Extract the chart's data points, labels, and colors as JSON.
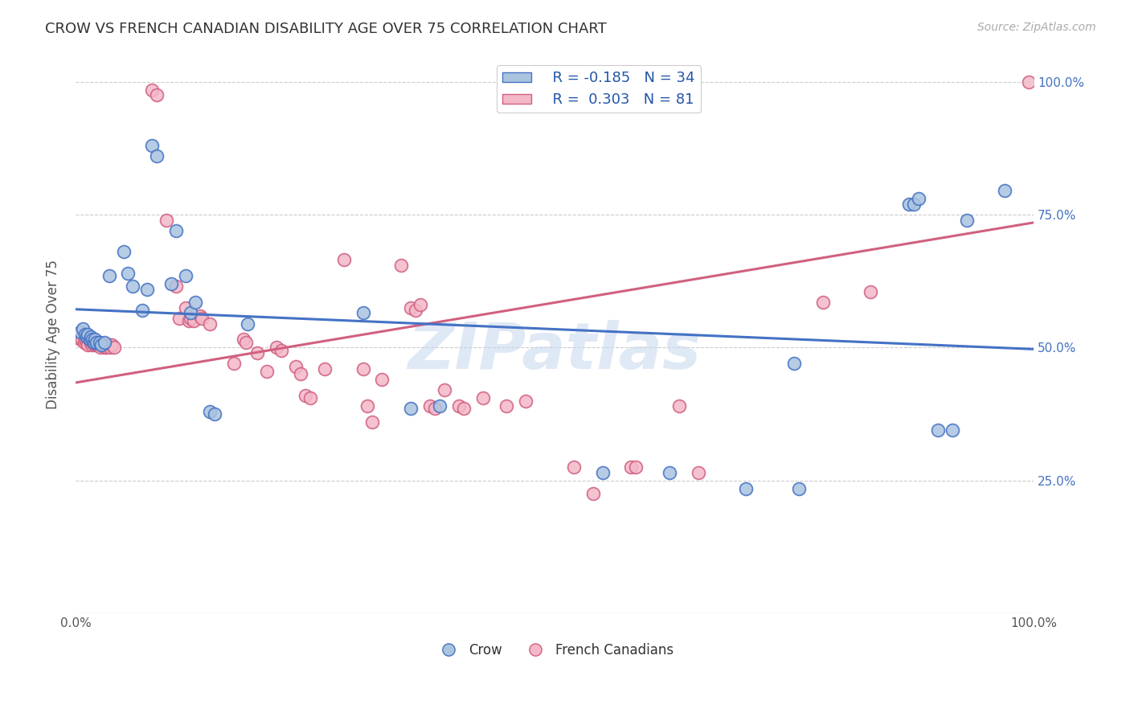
{
  "title": "CROW VS FRENCH CANADIAN DISABILITY AGE OVER 75 CORRELATION CHART",
  "source": "Source: ZipAtlas.com",
  "ylabel": "Disability Age Over 75",
  "xlim": [
    0,
    1
  ],
  "ylim": [
    0,
    1.05
  ],
  "watermark": "ZIPatlas",
  "crow_color": "#aac4e0",
  "crow_edge_color": "#4472c4",
  "fc_color": "#f4b8c8",
  "fc_edge_color": "#d06080",
  "crow_line_color": "#4472c4",
  "fc_line_color": "#d06080",
  "background_color": "#ffffff",
  "grid_color": "#cccccc",
  "crow_scatter": [
    [
      0.005,
      0.53
    ],
    [
      0.008,
      0.535
    ],
    [
      0.01,
      0.525
    ],
    [
      0.012,
      0.52
    ],
    [
      0.013,
      0.525
    ],
    [
      0.015,
      0.515
    ],
    [
      0.016,
      0.52
    ],
    [
      0.018,
      0.515
    ],
    [
      0.019,
      0.51
    ],
    [
      0.02,
      0.515
    ],
    [
      0.022,
      0.51
    ],
    [
      0.025,
      0.51
    ],
    [
      0.027,
      0.505
    ],
    [
      0.03,
      0.51
    ],
    [
      0.035,
      0.635
    ],
    [
      0.05,
      0.68
    ],
    [
      0.055,
      0.64
    ],
    [
      0.06,
      0.615
    ],
    [
      0.07,
      0.57
    ],
    [
      0.075,
      0.61
    ],
    [
      0.08,
      0.88
    ],
    [
      0.085,
      0.86
    ],
    [
      0.1,
      0.62
    ],
    [
      0.105,
      0.72
    ],
    [
      0.115,
      0.635
    ],
    [
      0.12,
      0.565
    ],
    [
      0.125,
      0.585
    ],
    [
      0.14,
      0.38
    ],
    [
      0.145,
      0.375
    ],
    [
      0.18,
      0.545
    ],
    [
      0.3,
      0.565
    ],
    [
      0.35,
      0.385
    ],
    [
      0.38,
      0.39
    ],
    [
      0.55,
      0.265
    ],
    [
      0.62,
      0.265
    ],
    [
      0.7,
      0.235
    ],
    [
      0.75,
      0.47
    ],
    [
      0.755,
      0.235
    ],
    [
      0.87,
      0.77
    ],
    [
      0.875,
      0.77
    ],
    [
      0.88,
      0.78
    ],
    [
      0.9,
      0.345
    ],
    [
      0.915,
      0.345
    ],
    [
      0.93,
      0.74
    ],
    [
      0.97,
      0.795
    ]
  ],
  "fc_scatter": [
    [
      0.005,
      0.515
    ],
    [
      0.007,
      0.515
    ],
    [
      0.009,
      0.51
    ],
    [
      0.01,
      0.515
    ],
    [
      0.012,
      0.51
    ],
    [
      0.013,
      0.505
    ],
    [
      0.014,
      0.515
    ],
    [
      0.016,
      0.51
    ],
    [
      0.017,
      0.505
    ],
    [
      0.018,
      0.51
    ],
    [
      0.02,
      0.505
    ],
    [
      0.022,
      0.505
    ],
    [
      0.023,
      0.505
    ],
    [
      0.024,
      0.51
    ],
    [
      0.025,
      0.505
    ],
    [
      0.026,
      0.5
    ],
    [
      0.028,
      0.505
    ],
    [
      0.03,
      0.5
    ],
    [
      0.032,
      0.505
    ],
    [
      0.033,
      0.5
    ],
    [
      0.035,
      0.505
    ],
    [
      0.036,
      0.5
    ],
    [
      0.038,
      0.505
    ],
    [
      0.04,
      0.5
    ],
    [
      0.08,
      0.985
    ],
    [
      0.085,
      0.975
    ],
    [
      0.095,
      0.74
    ],
    [
      0.105,
      0.615
    ],
    [
      0.108,
      0.555
    ],
    [
      0.115,
      0.575
    ],
    [
      0.118,
      0.55
    ],
    [
      0.12,
      0.555
    ],
    [
      0.123,
      0.55
    ],
    [
      0.13,
      0.56
    ],
    [
      0.132,
      0.555
    ],
    [
      0.14,
      0.545
    ],
    [
      0.165,
      0.47
    ],
    [
      0.175,
      0.515
    ],
    [
      0.178,
      0.51
    ],
    [
      0.19,
      0.49
    ],
    [
      0.2,
      0.455
    ],
    [
      0.21,
      0.5
    ],
    [
      0.215,
      0.495
    ],
    [
      0.23,
      0.465
    ],
    [
      0.235,
      0.45
    ],
    [
      0.24,
      0.41
    ],
    [
      0.245,
      0.405
    ],
    [
      0.26,
      0.46
    ],
    [
      0.28,
      0.665
    ],
    [
      0.3,
      0.46
    ],
    [
      0.305,
      0.39
    ],
    [
      0.31,
      0.36
    ],
    [
      0.32,
      0.44
    ],
    [
      0.34,
      0.655
    ],
    [
      0.35,
      0.575
    ],
    [
      0.355,
      0.57
    ],
    [
      0.36,
      0.58
    ],
    [
      0.37,
      0.39
    ],
    [
      0.375,
      0.385
    ],
    [
      0.385,
      0.42
    ],
    [
      0.4,
      0.39
    ],
    [
      0.405,
      0.385
    ],
    [
      0.425,
      0.405
    ],
    [
      0.45,
      0.39
    ],
    [
      0.47,
      0.4
    ],
    [
      0.52,
      0.275
    ],
    [
      0.54,
      0.225
    ],
    [
      0.58,
      0.275
    ],
    [
      0.585,
      0.275
    ],
    [
      0.63,
      0.39
    ],
    [
      0.65,
      0.265
    ],
    [
      0.78,
      0.585
    ],
    [
      0.83,
      0.605
    ],
    [
      0.995,
      1.0
    ]
  ],
  "crow_trendline": [
    [
      0.0,
      0.572
    ],
    [
      1.0,
      0.497
    ]
  ],
  "fc_trendline": [
    [
      0.0,
      0.434
    ],
    [
      1.0,
      0.735
    ]
  ]
}
